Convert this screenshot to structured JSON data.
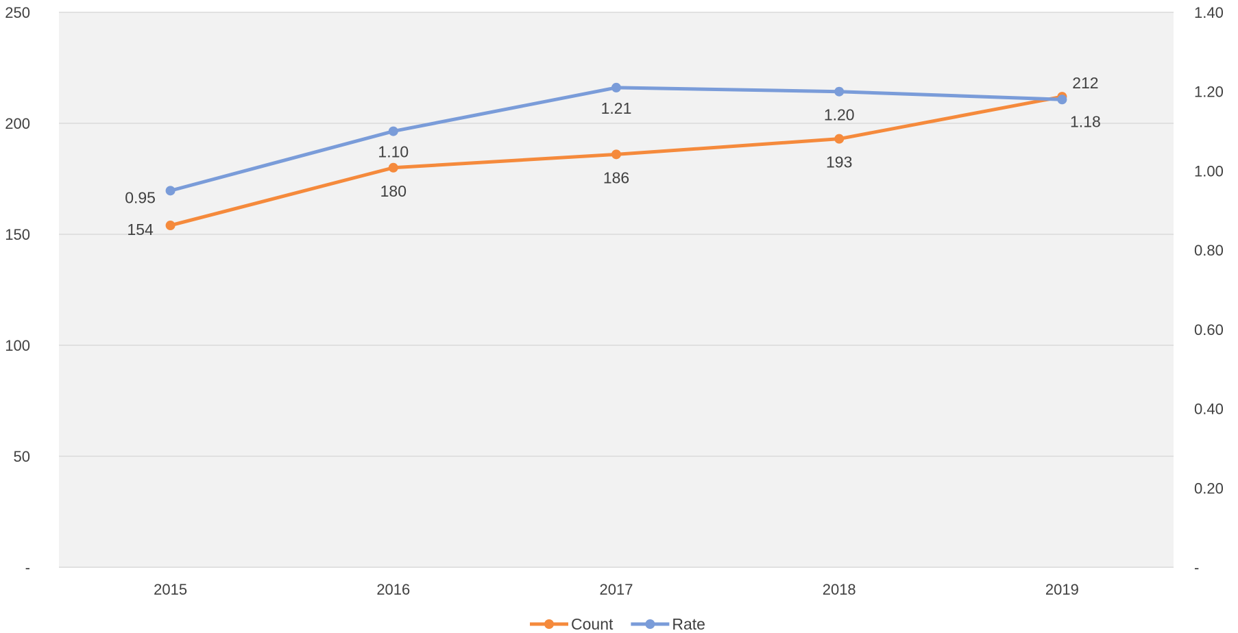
{
  "chart_data": {
    "type": "line",
    "categories": [
      "2015",
      "2016",
      "2017",
      "2018",
      "2019"
    ],
    "series": [
      {
        "name": "Count",
        "axis": "left",
        "color": "#F58A3C",
        "values": [
          154,
          180,
          186,
          193,
          212
        ],
        "labels": [
          "154",
          "180",
          "186",
          "193",
          "212"
        ]
      },
      {
        "name": "Rate",
        "axis": "right",
        "color": "#7A9CD9",
        "values": [
          0.95,
          1.1,
          1.21,
          1.2,
          1.18
        ],
        "labels": [
          "0.95",
          "1.10",
          "1.21",
          "1.20",
          "1.18"
        ]
      }
    ],
    "y_left": {
      "ylim": [
        0,
        250
      ],
      "ticks": [
        0,
        50,
        100,
        150,
        200,
        250
      ],
      "tick_labels": [
        "-",
        "50",
        "100",
        "150",
        "200",
        "250"
      ]
    },
    "y_right": {
      "ylim": [
        0,
        1.4
      ],
      "ticks": [
        0,
        0.2,
        0.4,
        0.6,
        0.8,
        1.0,
        1.2,
        1.4
      ],
      "tick_labels": [
        "-",
        "0.20",
        "0.40",
        "0.60",
        "0.80",
        "1.00",
        "1.20",
        "1.40"
      ]
    },
    "grid": true,
    "legend_position": "bottom",
    "plot_background": "#F2F2F2",
    "grid_color": "#D9D9D9"
  }
}
